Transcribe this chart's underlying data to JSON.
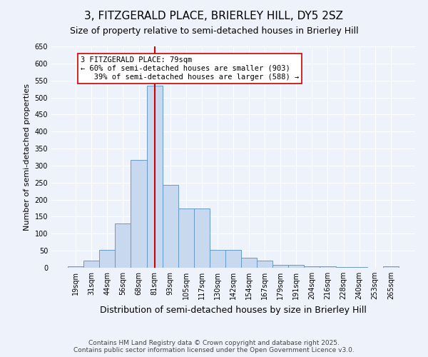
{
  "title": "3, FITZGERALD PLACE, BRIERLEY HILL, DY5 2SZ",
  "subtitle": "Size of property relative to semi-detached houses in Brierley Hill",
  "xlabel": "Distribution of semi-detached houses by size in Brierley Hill",
  "ylabel": "Number of semi-detached properties",
  "bar_color": "#c8d8ee",
  "bar_edge_color": "#6699cc",
  "background_color": "#eef2fa",
  "grid_color": "#ffffff",
  "categories": [
    "19sqm",
    "31sqm",
    "44sqm",
    "56sqm",
    "68sqm",
    "81sqm",
    "93sqm",
    "105sqm",
    "117sqm",
    "130sqm",
    "142sqm",
    "154sqm",
    "167sqm",
    "179sqm",
    "191sqm",
    "204sqm",
    "216sqm",
    "228sqm",
    "240sqm",
    "253sqm",
    "265sqm"
  ],
  "values": [
    5,
    22,
    53,
    130,
    316,
    535,
    243,
    174,
    174,
    53,
    53,
    30,
    20,
    8,
    8,
    5,
    5,
    2,
    2,
    1,
    5
  ],
  "property_bin_index": 5,
  "property_label": "3 FITZGERALD PLACE: 79sqm",
  "pct_smaller": 60,
  "count_smaller": 903,
  "pct_larger": 39,
  "count_larger": 588,
  "vline_color": "#cc0000",
  "annotation_box_color": "#ffffff",
  "annotation_box_edge": "#cc0000",
  "ylim": [
    0,
    650
  ],
  "yticks": [
    0,
    50,
    100,
    150,
    200,
    250,
    300,
    350,
    400,
    450,
    500,
    550,
    600,
    650
  ],
  "footnote": "Contains HM Land Registry data © Crown copyright and database right 2025.\nContains public sector information licensed under the Open Government Licence v3.0.",
  "title_fontsize": 11,
  "subtitle_fontsize": 9,
  "xlabel_fontsize": 9,
  "ylabel_fontsize": 8,
  "tick_fontsize": 7,
  "annotation_fontsize": 7.5,
  "footnote_fontsize": 6.5
}
